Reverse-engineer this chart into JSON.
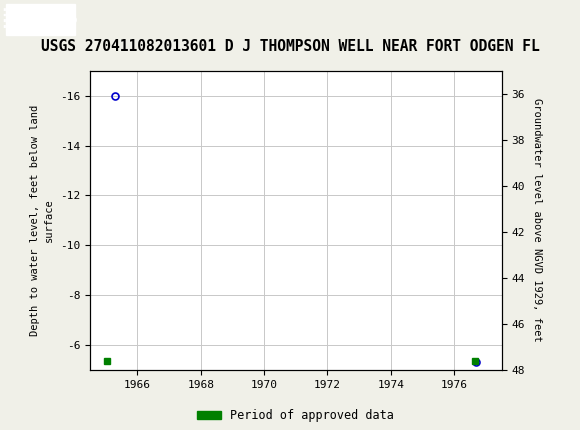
{
  "title": "USGS 270411082013601 D J THOMPSON WELL NEAR FORT ODGEN FL",
  "ylabel_left": "Depth to water level, feet below land\nsurface",
  "ylabel_right": "Groundwater level above NGVD 1929, feet",
  "xlim": [
    1964.5,
    1977.5
  ],
  "ylim_left": [
    -5,
    -17
  ],
  "ylim_right": [
    48,
    35
  ],
  "xticks": [
    1966,
    1968,
    1970,
    1972,
    1974,
    1976
  ],
  "yticks_left": [
    -6,
    -8,
    -10,
    -12,
    -14,
    -16
  ],
  "yticks_right": [
    48,
    46,
    44,
    42,
    40,
    38,
    36
  ],
  "point1_x": 1965.3,
  "point1_y": -16.0,
  "point2_x": 1976.7,
  "point2_y": -5.3,
  "point_color": "#0000cc",
  "green_sq1_x": 1965.05,
  "green_sq1_y": -5.35,
  "green_sq2_x": 1976.65,
  "green_sq2_y": -5.35,
  "green_color": "#008000",
  "header_color": "#006633",
  "background_color": "#f0f0e8",
  "plot_bg_color": "#ffffff",
  "grid_color": "#c8c8c8",
  "legend_label": "Period of approved data",
  "title_fontsize": 10.5,
  "axis_label_fontsize": 7.5,
  "tick_fontsize": 8
}
